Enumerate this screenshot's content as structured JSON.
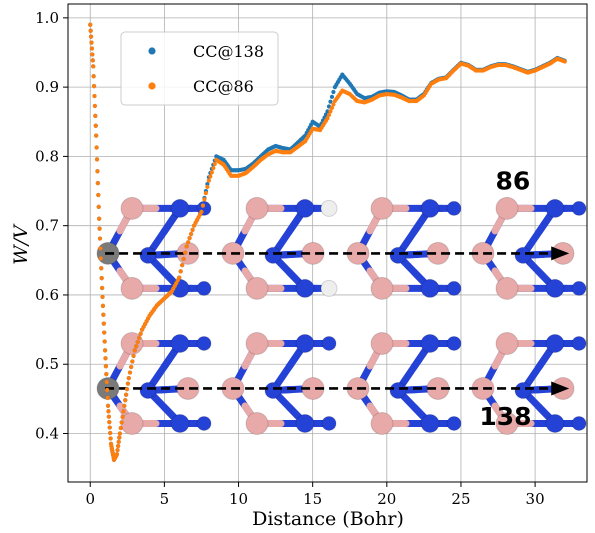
{
  "chart_data": {
    "type": "scatter",
    "xlabel": "Distance (Bohr)",
    "ylabel": "W/V",
    "xlim": [
      -1.5,
      33.5
    ],
    "ylim": [
      0.33,
      1.02
    ],
    "x_ticks": [
      0,
      5,
      10,
      15,
      20,
      25,
      30
    ],
    "y_ticks": [
      0.4,
      0.5,
      0.6,
      0.7,
      0.8,
      0.9,
      1.0
    ],
    "x_tick_labels": [
      "0",
      "5",
      "10",
      "15",
      "20",
      "25",
      "30"
    ],
    "y_tick_labels": [
      "0.4",
      "0.5",
      "0.6",
      "0.7",
      "0.8",
      "0.9",
      "1.0"
    ],
    "grid": true,
    "legend": "top-left",
    "series": [
      {
        "name": "CC@138",
        "color": "#1f77b4",
        "points": [
          [
            0.0,
            0.99
          ],
          [
            0.2,
            0.93
          ],
          [
            0.4,
            0.83
          ],
          [
            0.6,
            0.71
          ],
          [
            0.8,
            0.61
          ],
          [
            1.0,
            0.52
          ],
          [
            1.2,
            0.44
          ],
          [
            1.4,
            0.385
          ],
          [
            1.6,
            0.362
          ],
          [
            1.8,
            0.37
          ],
          [
            2.0,
            0.4
          ],
          [
            2.3,
            0.44
          ],
          [
            2.6,
            0.48
          ],
          [
            3.0,
            0.52
          ],
          [
            3.5,
            0.55
          ],
          [
            4.0,
            0.57
          ],
          [
            4.5,
            0.585
          ],
          [
            5.0,
            0.595
          ],
          [
            5.5,
            0.605
          ],
          [
            6.0,
            0.625
          ],
          [
            6.5,
            0.67
          ],
          [
            7.0,
            0.7
          ],
          [
            7.5,
            0.72
          ],
          [
            8.0,
            0.77
          ],
          [
            8.5,
            0.8
          ],
          [
            9.0,
            0.795
          ],
          [
            9.5,
            0.78
          ],
          [
            10.0,
            0.78
          ],
          [
            10.5,
            0.782
          ],
          [
            11.0,
            0.79
          ],
          [
            11.5,
            0.8
          ],
          [
            12.0,
            0.81
          ],
          [
            12.5,
            0.815
          ],
          [
            13.0,
            0.812
          ],
          [
            13.5,
            0.81
          ],
          [
            14.0,
            0.82
          ],
          [
            14.5,
            0.83
          ],
          [
            15.0,
            0.85
          ],
          [
            15.5,
            0.843
          ],
          [
            16.0,
            0.865
          ],
          [
            16.5,
            0.9
          ],
          [
            17.0,
            0.918
          ],
          [
            17.5,
            0.905
          ],
          [
            18.0,
            0.89
          ],
          [
            18.5,
            0.884
          ],
          [
            19.0,
            0.886
          ],
          [
            19.5,
            0.892
          ],
          [
            20.0,
            0.894
          ],
          [
            20.5,
            0.893
          ],
          [
            21.0,
            0.888
          ],
          [
            21.5,
            0.882
          ],
          [
            22.0,
            0.882
          ],
          [
            22.5,
            0.89
          ],
          [
            23.0,
            0.906
          ],
          [
            23.5,
            0.912
          ],
          [
            24.0,
            0.914
          ],
          [
            24.5,
            0.925
          ],
          [
            25.0,
            0.935
          ],
          [
            25.5,
            0.932
          ],
          [
            26.0,
            0.925
          ],
          [
            26.5,
            0.925
          ],
          [
            27.0,
            0.93
          ],
          [
            27.5,
            0.933
          ],
          [
            28.0,
            0.933
          ],
          [
            28.5,
            0.93
          ],
          [
            29.0,
            0.926
          ],
          [
            29.5,
            0.922
          ],
          [
            30.0,
            0.925
          ],
          [
            30.5,
            0.93
          ],
          [
            31.0,
            0.935
          ],
          [
            31.5,
            0.942
          ],
          [
            32.0,
            0.938
          ]
        ]
      },
      {
        "name": "CC@86",
        "color": "#ff7f0e",
        "points": [
          [
            0.0,
            0.99
          ],
          [
            0.2,
            0.93
          ],
          [
            0.4,
            0.83
          ],
          [
            0.6,
            0.71
          ],
          [
            0.8,
            0.61
          ],
          [
            1.0,
            0.52
          ],
          [
            1.2,
            0.44
          ],
          [
            1.4,
            0.385
          ],
          [
            1.6,
            0.362
          ],
          [
            1.8,
            0.37
          ],
          [
            2.0,
            0.4
          ],
          [
            2.3,
            0.44
          ],
          [
            2.6,
            0.48
          ],
          [
            3.0,
            0.52
          ],
          [
            3.5,
            0.55
          ],
          [
            4.0,
            0.57
          ],
          [
            4.5,
            0.585
          ],
          [
            5.0,
            0.595
          ],
          [
            5.5,
            0.605
          ],
          [
            6.0,
            0.625
          ],
          [
            6.5,
            0.67
          ],
          [
            7.0,
            0.7
          ],
          [
            7.5,
            0.72
          ],
          [
            8.0,
            0.765
          ],
          [
            8.5,
            0.795
          ],
          [
            9.0,
            0.788
          ],
          [
            9.5,
            0.772
          ],
          [
            10.0,
            0.772
          ],
          [
            10.5,
            0.776
          ],
          [
            11.0,
            0.785
          ],
          [
            11.5,
            0.795
          ],
          [
            12.0,
            0.803
          ],
          [
            12.5,
            0.808
          ],
          [
            13.0,
            0.806
          ],
          [
            13.5,
            0.806
          ],
          [
            14.0,
            0.814
          ],
          [
            14.5,
            0.822
          ],
          [
            15.0,
            0.84
          ],
          [
            15.5,
            0.838
          ],
          [
            16.0,
            0.855
          ],
          [
            16.5,
            0.88
          ],
          [
            17.0,
            0.895
          ],
          [
            17.5,
            0.89
          ],
          [
            18.0,
            0.88
          ],
          [
            18.5,
            0.878
          ],
          [
            19.0,
            0.882
          ],
          [
            19.5,
            0.888
          ],
          [
            20.0,
            0.89
          ],
          [
            20.5,
            0.889
          ],
          [
            21.0,
            0.885
          ],
          [
            21.5,
            0.88
          ],
          [
            22.0,
            0.88
          ],
          [
            22.5,
            0.888
          ],
          [
            23.0,
            0.905
          ],
          [
            23.5,
            0.911
          ],
          [
            24.0,
            0.913
          ],
          [
            24.5,
            0.924
          ],
          [
            25.0,
            0.934
          ],
          [
            25.5,
            0.931
          ],
          [
            26.0,
            0.924
          ],
          [
            26.5,
            0.924
          ],
          [
            27.0,
            0.929
          ],
          [
            27.5,
            0.932
          ],
          [
            28.0,
            0.932
          ],
          [
            28.5,
            0.929
          ],
          [
            29.0,
            0.925
          ],
          [
            29.5,
            0.921
          ],
          [
            30.0,
            0.924
          ],
          [
            30.5,
            0.929
          ],
          [
            31.0,
            0.934
          ],
          [
            31.5,
            0.941
          ],
          [
            32.0,
            0.937
          ]
        ]
      }
    ],
    "annotations": [
      {
        "text": "86",
        "x": 28.5,
        "y": 0.752
      },
      {
        "text": "138",
        "x": 28.0,
        "y": 0.412
      }
    ],
    "arrows": [
      {
        "y": 0.66,
        "x_start": 1.0,
        "x_end": 32.3,
        "style": "dashed"
      },
      {
        "y": 0.465,
        "x_start": 1.0,
        "x_end": 32.3,
        "style": "dashed"
      }
    ],
    "inset": {
      "description": "hexagonal boron nitride lattice with carbon dopant",
      "boron_color": "#e8a9a9",
      "nitrogen_color": "#2442d6",
      "carbon_color": "#7a7a7a",
      "hydrogen_color": "#eeeeee"
    }
  }
}
